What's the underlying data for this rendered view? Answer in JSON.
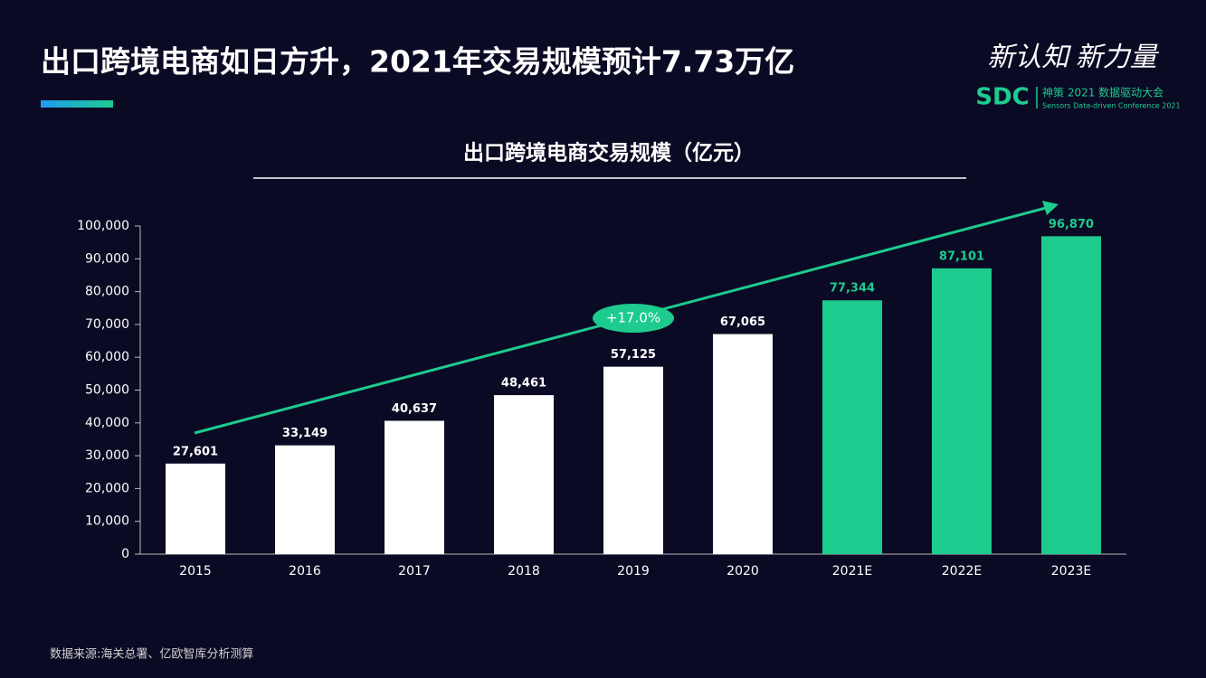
{
  "header": {
    "title": "出口跨境电商如日方升，2021年交易规模预计7.73万亿",
    "logo_slogan": "新认知 新力量",
    "logo_mark": "SDC",
    "logo_name": "神策 2021 数据驱动大会",
    "logo_subname": "Sensors Data-driven Conference 2021"
  },
  "chart_data": {
    "type": "bar",
    "title": "出口跨境电商交易规模（亿元）",
    "categories": [
      "2015",
      "2016",
      "2017",
      "2018",
      "2019",
      "2020",
      "2021E",
      "2022E",
      "2023E"
    ],
    "values": [
      27601,
      33149,
      40637,
      48461,
      57125,
      67065,
      77344,
      87101,
      96870
    ],
    "value_labels": [
      "27,601",
      "33,149",
      "40,637",
      "48,461",
      "57,125",
      "67,065",
      "77,344",
      "87,101",
      "96,870"
    ],
    "colors": [
      "#ffffff",
      "#ffffff",
      "#ffffff",
      "#ffffff",
      "#ffffff",
      "#ffffff",
      "#1dcb8e",
      "#1dcb8e",
      "#1dcb8e"
    ],
    "ylim": [
      0,
      100000
    ],
    "yticks": [
      0,
      {
        "value": 10000,
        "label": "10,000"
      },
      {
        "value": 20000,
        "label": "20,000"
      },
      {
        "value": 30000,
        "label": "30,000"
      },
      {
        "value": 40000,
        "label": "40,000"
      },
      {
        "value": 50000,
        "label": "50,000"
      },
      {
        "value": 60000,
        "label": "60,000"
      },
      {
        "value": 70000,
        "label": "70,000"
      },
      {
        "value": 80000,
        "label": "80,000"
      },
      {
        "value": 90000,
        "label": "90,000"
      },
      {
        "value": 100000,
        "label": "100,000"
      }
    ],
    "annotation": "+17.0%"
  },
  "footer": {
    "source": "数据来源:海关总署、亿欧智库分析测算"
  }
}
